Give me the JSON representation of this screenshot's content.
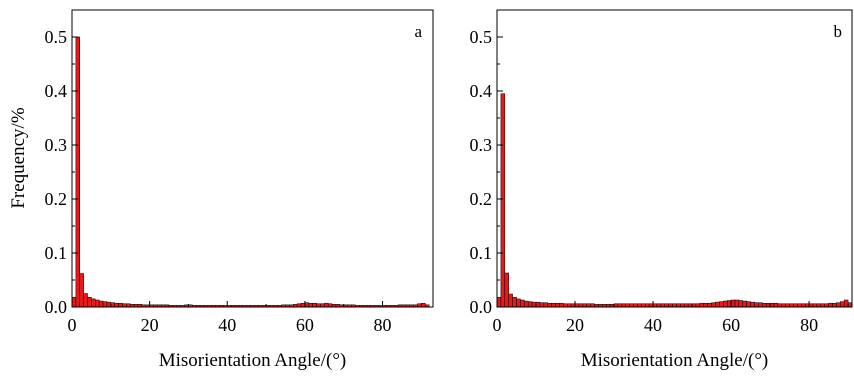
{
  "chart_data": [
    {
      "type": "bar",
      "panel_label": "a",
      "xlabel": "Misorientation Angle/(°)",
      "ylabel": "Frequency/%",
      "xlim": [
        0,
        93
      ],
      "ylim": [
        0,
        0.55
      ],
      "xticks": [
        0,
        20,
        40,
        60,
        80
      ],
      "yticks": [
        0.0,
        0.1,
        0.2,
        0.3,
        0.4,
        0.5
      ],
      "xtick_labels": [
        "0",
        "20",
        "40",
        "60",
        "80"
      ],
      "ytick_labels": [
        "0.0",
        "0.1",
        "0.2",
        "0.3",
        "0.4",
        "0.5"
      ],
      "bin_width": 1,
      "bar_color": "#e41a1c",
      "x": [
        0,
        1,
        2,
        3,
        4,
        5,
        6,
        7,
        8,
        9,
        10,
        11,
        12,
        13,
        14,
        15,
        16,
        17,
        18,
        19,
        20,
        21,
        22,
        23,
        24,
        25,
        26,
        27,
        28,
        29,
        30,
        31,
        32,
        33,
        34,
        35,
        36,
        37,
        38,
        39,
        40,
        41,
        42,
        43,
        44,
        45,
        46,
        47,
        48,
        49,
        50,
        51,
        52,
        53,
        54,
        55,
        56,
        57,
        58,
        59,
        60,
        61,
        62,
        63,
        64,
        65,
        66,
        67,
        68,
        69,
        70,
        71,
        72,
        73,
        74,
        75,
        76,
        77,
        78,
        79,
        80,
        81,
        82,
        83,
        84,
        85,
        86,
        87,
        88,
        89,
        90,
        91
      ],
      "values": [
        0.018,
        0.5,
        0.062,
        0.025,
        0.018,
        0.015,
        0.013,
        0.011,
        0.01,
        0.009,
        0.008,
        0.007,
        0.007,
        0.006,
        0.006,
        0.005,
        0.005,
        0.005,
        0.004,
        0.004,
        0.004,
        0.004,
        0.004,
        0.004,
        0.004,
        0.003,
        0.003,
        0.003,
        0.003,
        0.004,
        0.004,
        0.003,
        0.003,
        0.003,
        0.003,
        0.003,
        0.003,
        0.003,
        0.003,
        0.003,
        0.003,
        0.003,
        0.003,
        0.003,
        0.003,
        0.003,
        0.003,
        0.003,
        0.003,
        0.003,
        0.003,
        0.003,
        0.003,
        0.003,
        0.004,
        0.004,
        0.004,
        0.005,
        0.006,
        0.007,
        0.008,
        0.007,
        0.007,
        0.006,
        0.006,
        0.007,
        0.006,
        0.005,
        0.005,
        0.004,
        0.004,
        0.004,
        0.004,
        0.003,
        0.003,
        0.003,
        0.003,
        0.003,
        0.003,
        0.003,
        0.003,
        0.003,
        0.003,
        0.003,
        0.004,
        0.004,
        0.004,
        0.004,
        0.004,
        0.006,
        0.007,
        0.004
      ]
    },
    {
      "type": "bar",
      "panel_label": "b",
      "xlabel": "Misorientation Angle/(°)",
      "ylabel": "",
      "xlim": [
        0,
        91
      ],
      "ylim": [
        0,
        0.55
      ],
      "xticks": [
        0,
        20,
        40,
        60,
        80
      ],
      "yticks": [
        0.0,
        0.1,
        0.2,
        0.3,
        0.4,
        0.5
      ],
      "xtick_labels": [
        "0",
        "20",
        "40",
        "60",
        "80"
      ],
      "ytick_labels": [
        "0.0",
        "0.1",
        "0.2",
        "0.3",
        "0.4",
        "0.5"
      ],
      "bin_width": 1,
      "bar_color": "#e41a1c",
      "x": [
        0,
        1,
        2,
        3,
        4,
        5,
        6,
        7,
        8,
        9,
        10,
        11,
        12,
        13,
        14,
        15,
        16,
        17,
        18,
        19,
        20,
        21,
        22,
        23,
        24,
        25,
        26,
        27,
        28,
        29,
        30,
        31,
        32,
        33,
        34,
        35,
        36,
        37,
        38,
        39,
        40,
        41,
        42,
        43,
        44,
        45,
        46,
        47,
        48,
        49,
        50,
        51,
        52,
        53,
        54,
        55,
        56,
        57,
        58,
        59,
        60,
        61,
        62,
        63,
        64,
        65,
        66,
        67,
        68,
        69,
        70,
        71,
        72,
        73,
        74,
        75,
        76,
        77,
        78,
        79,
        80,
        81,
        82,
        83,
        84,
        85,
        86,
        87,
        88,
        89,
        90
      ],
      "values": [
        0.018,
        0.395,
        0.063,
        0.024,
        0.018,
        0.015,
        0.013,
        0.011,
        0.01,
        0.009,
        0.009,
        0.008,
        0.008,
        0.007,
        0.007,
        0.007,
        0.007,
        0.006,
        0.006,
        0.006,
        0.006,
        0.006,
        0.006,
        0.006,
        0.006,
        0.005,
        0.005,
        0.005,
        0.005,
        0.005,
        0.006,
        0.006,
        0.006,
        0.006,
        0.006,
        0.006,
        0.006,
        0.006,
        0.006,
        0.006,
        0.006,
        0.006,
        0.006,
        0.006,
        0.006,
        0.006,
        0.006,
        0.006,
        0.006,
        0.006,
        0.006,
        0.006,
        0.007,
        0.007,
        0.007,
        0.008,
        0.009,
        0.01,
        0.011,
        0.012,
        0.013,
        0.013,
        0.012,
        0.011,
        0.01,
        0.009,
        0.008,
        0.008,
        0.007,
        0.007,
        0.007,
        0.007,
        0.006,
        0.006,
        0.006,
        0.006,
        0.006,
        0.006,
        0.006,
        0.006,
        0.006,
        0.006,
        0.006,
        0.006,
        0.006,
        0.007,
        0.007,
        0.008,
        0.01,
        0.013,
        0.008
      ]
    }
  ]
}
